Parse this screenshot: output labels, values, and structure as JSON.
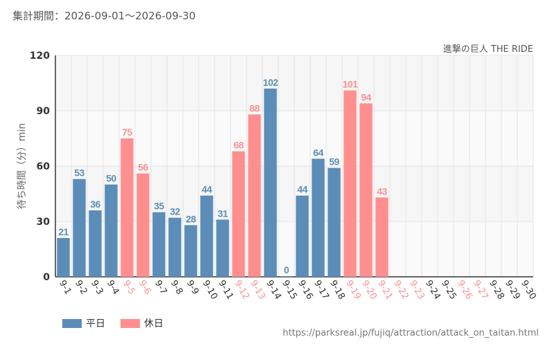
{
  "header": {
    "period_label": "集計期間：",
    "period_range": "2026-09-01〜2026-09-30",
    "attraction": "進撃の巨人 THE RIDE"
  },
  "legend": {
    "weekday": "平日",
    "holiday": "休日"
  },
  "source": "https://parksreal.jp/fujiq/attraction/attack_on_taitan.html",
  "colors": {
    "weekday": "#5b8db8",
    "holiday": "#ff8f8f",
    "plot_band": "#f5f5f5",
    "grid": "#e4e4e4"
  },
  "chart_data": {
    "type": "bar",
    "ylabel": "待ち時間（分）min",
    "ylim": [
      0,
      120
    ],
    "yticks": [
      0,
      30,
      60,
      90,
      120
    ],
    "categories": [
      "9-1",
      "9-2",
      "9-3",
      "9-4",
      "9-5",
      "9-6",
      "9-7",
      "9-8",
      "9-9",
      "9-10",
      "9-11",
      "9-12",
      "9-13",
      "9-14",
      "9-15",
      "9-16",
      "9-17",
      "9-18",
      "9-19",
      "9-20",
      "9-21",
      "9-22",
      "9-23",
      "9-24",
      "9-25",
      "9-26",
      "9-27",
      "9-28",
      "9-29",
      "9-30"
    ],
    "day_type": [
      "weekday",
      "weekday",
      "weekday",
      "weekday",
      "holiday",
      "holiday",
      "weekday",
      "weekday",
      "weekday",
      "weekday",
      "weekday",
      "holiday",
      "holiday",
      "weekday",
      "weekday",
      "weekday",
      "weekday",
      "weekday",
      "holiday",
      "holiday",
      "holiday",
      "holiday",
      "holiday",
      "weekday",
      "weekday",
      "holiday",
      "holiday",
      "weekday",
      "weekday",
      "weekday"
    ],
    "values": [
      21,
      53,
      36,
      50,
      75,
      56,
      35,
      32,
      28,
      44,
      31,
      68,
      88,
      102,
      0,
      44,
      64,
      59,
      101,
      94,
      43,
      null,
      null,
      null,
      null,
      null,
      null,
      null,
      null,
      null
    ]
  }
}
